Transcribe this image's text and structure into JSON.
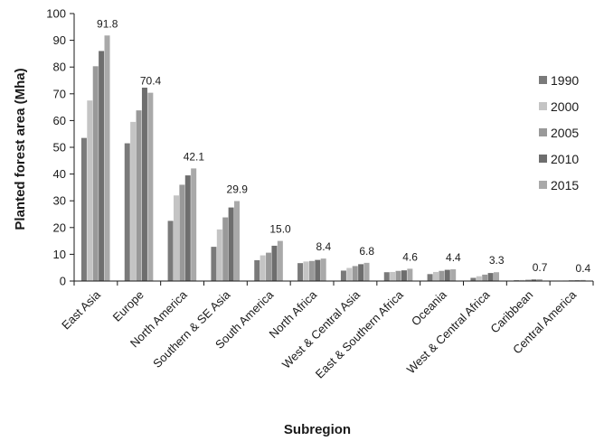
{
  "chart_data": {
    "type": "bar",
    "title": "",
    "xlabel": "Subregion",
    "ylabel": "Planted forest area (Mha)",
    "ylim": [
      0,
      100
    ],
    "yticks": [
      0,
      10,
      20,
      30,
      40,
      50,
      60,
      70,
      80,
      90,
      100
    ],
    "grid": false,
    "legend_position": "right",
    "categories": [
      "East Asia",
      "Europe",
      "North America",
      "Southern & SE Asia",
      "South America",
      "North Africa",
      "West & Central Asia",
      "East & Southern Africa",
      "Oceania",
      "West & Central Africa",
      "Caribbean",
      "Central America"
    ],
    "series": [
      {
        "name": "1990",
        "color": "#7a7a7a",
        "values": [
          53.5,
          51.5,
          22.5,
          12.8,
          7.8,
          6.7,
          3.9,
          3.3,
          2.6,
          1.2,
          0.3,
          0.1
        ]
      },
      {
        "name": "2000",
        "color": "#c4c4c4",
        "values": [
          67.5,
          59.5,
          32.0,
          19.3,
          9.6,
          7.3,
          4.9,
          3.4,
          3.4,
          1.8,
          0.4,
          0.2
        ]
      },
      {
        "name": "2005",
        "color": "#999999",
        "values": [
          80.3,
          63.8,
          36.0,
          23.8,
          10.6,
          7.5,
          5.6,
          3.8,
          3.8,
          2.4,
          0.5,
          0.3
        ]
      },
      {
        "name": "2010",
        "color": "#6e6e6e",
        "values": [
          86.0,
          72.3,
          39.5,
          27.5,
          13.2,
          7.9,
          6.3,
          4.0,
          4.2,
          3.0,
          0.6,
          0.3
        ]
      },
      {
        "name": "2015",
        "color": "#a9a9a9",
        "values": [
          91.8,
          70.4,
          42.1,
          29.9,
          15.0,
          8.4,
          6.8,
          4.6,
          4.4,
          3.3,
          0.7,
          0.4
        ]
      }
    ],
    "data_labels": [
      "91.8",
      "70.4",
      "42.1",
      "29.9",
      "15.0",
      "8.4",
      "6.8",
      "4.6",
      "4.4",
      "3.3",
      "0.7",
      "0.4"
    ]
  }
}
